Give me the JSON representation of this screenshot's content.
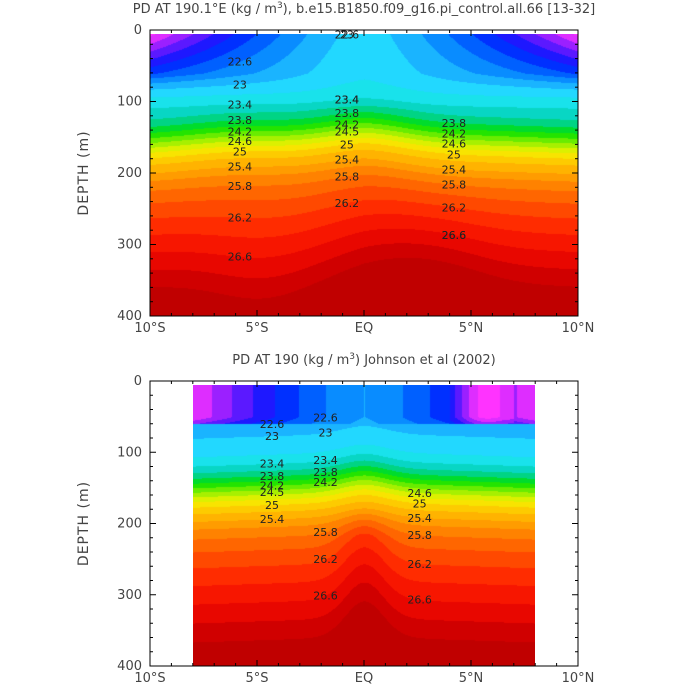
{
  "chart_data": [
    {
      "type": "heatmap",
      "title_parts": [
        "PD AT 190.1°E (kg / m",
        "3",
        "), b.e15.B1850.f09_g16.pi_control.all.66 [13-32]"
      ],
      "ylabel": "DEPTH (m)",
      "xlim": [
        -10,
        10
      ],
      "ylim": [
        0,
        400
      ],
      "y_inverted": true,
      "x_ticks": [
        -10,
        -5,
        0,
        5,
        10
      ],
      "x_tick_labels": [
        "10°S",
        "5°S",
        "EQ",
        "5°N",
        "10°N"
      ],
      "y_ticks": [
        0,
        100,
        200,
        300,
        400
      ],
      "y_tick_labels": [
        "0",
        "100",
        "200",
        "300",
        "400"
      ],
      "data_extent_x": [
        -10,
        10
      ],
      "data_extent_y": [
        5,
        400
      ],
      "contour_interval": 0.2,
      "contour_labels": [
        "22.6",
        "23",
        "23.4",
        "23.8",
        "24.2",
        "24.6",
        "25",
        "25.4",
        "25.8",
        "26.2",
        "26.6",
        "23.4",
        "23.8",
        "24.2",
        "24.5",
        "25",
        "25.4",
        "25.8",
        "26.2",
        "22.6",
        "23",
        "23.4",
        "23.8",
        "24.2",
        "24.6",
        "25",
        "25.4",
        "25.8",
        "26.2",
        "26.6",
        "26.6"
      ]
    },
    {
      "type": "heatmap",
      "title_parts": [
        "PD AT 190 (kg / m",
        "3",
        ") Johnson et al (2002)"
      ],
      "ylabel": "DEPTH (m)",
      "xlim": [
        -10,
        10
      ],
      "ylim": [
        0,
        400
      ],
      "y_inverted": true,
      "x_ticks": [
        -10,
        -5,
        0,
        5,
        10
      ],
      "x_tick_labels": [
        "10°S",
        "5°S",
        "EQ",
        "5°N",
        "10°N"
      ],
      "y_ticks": [
        0,
        100,
        200,
        300,
        400
      ],
      "y_tick_labels": [
        "0",
        "100",
        "200",
        "300",
        "400"
      ],
      "data_extent_x": [
        -8,
        8
      ],
      "data_extent_y": [
        5,
        400
      ],
      "contour_interval": 0.2,
      "contour_labels": [
        "22.6",
        "23",
        "23.4",
        "23.8",
        "24.2",
        "24.5",
        "25",
        "25.4",
        "25.8",
        "26.2",
        "26.6",
        "22.6",
        "23",
        "23.4",
        "23.8",
        "24.2",
        "24.6",
        "25",
        "25.4",
        "25.8",
        "26.2",
        "26.6"
      ]
    }
  ],
  "colorscale": {
    "values": [
      21.4,
      21.8,
      22.2,
      22.6,
      23.0,
      23.2,
      23.6,
      24.0,
      24.4,
      24.8,
      25.2,
      25.6,
      26.0,
      26.4,
      26.8,
      27.0
    ],
    "colors": [
      "#ff33ff",
      "#7a1aff",
      "#0018ff",
      "#0078ff",
      "#22c8ff",
      "#22e8ff",
      "#00d0b0",
      "#00e000",
      "#8cf000",
      "#f6f000",
      "#ffbf00",
      "#ff9000",
      "#ff5800",
      "#ff1e00",
      "#e00000",
      "#c00000"
    ]
  }
}
